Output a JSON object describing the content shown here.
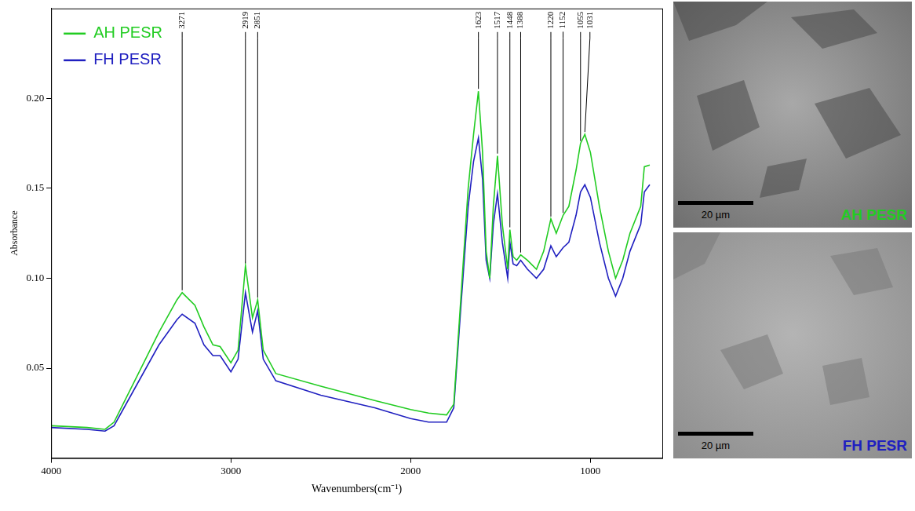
{
  "chart_data": {
    "type": "line",
    "x_label": "Wavenumbers(cm⁻¹)",
    "y_label": "Absorbance",
    "x": [
      4000,
      3800,
      3700,
      3650,
      3600,
      3500,
      3400,
      3300,
      3271,
      3200,
      3150,
      3100,
      3060,
      3000,
      2960,
      2919,
      2880,
      2851,
      2820,
      2750,
      2500,
      2200,
      2000,
      1900,
      1800,
      1760,
      1720,
      1680,
      1650,
      1623,
      1600,
      1580,
      1560,
      1540,
      1517,
      1490,
      1460,
      1448,
      1430,
      1410,
      1388,
      1350,
      1300,
      1260,
      1220,
      1190,
      1152,
      1120,
      1080,
      1055,
      1031,
      1000,
      950,
      900,
      860,
      820,
      780,
      720,
      700,
      670
    ],
    "series": [
      {
        "name": "AH PESR",
        "color": "#22cc22",
        "values": [
          0.018,
          0.017,
          0.016,
          0.02,
          0.03,
          0.05,
          0.07,
          0.088,
          0.092,
          0.085,
          0.073,
          0.063,
          0.062,
          0.053,
          0.06,
          0.107,
          0.078,
          0.088,
          0.06,
          0.047,
          0.04,
          0.032,
          0.027,
          0.025,
          0.024,
          0.03,
          0.09,
          0.15,
          0.18,
          0.204,
          0.17,
          0.115,
          0.1,
          0.14,
          0.168,
          0.13,
          0.105,
          0.127,
          0.112,
          0.11,
          0.113,
          0.11,
          0.105,
          0.115,
          0.133,
          0.125,
          0.135,
          0.14,
          0.16,
          0.175,
          0.18,
          0.17,
          0.14,
          0.115,
          0.1,
          0.11,
          0.125,
          0.14,
          0.162,
          0.163
        ]
      },
      {
        "name": "FH PESR",
        "color": "#2020c0",
        "values": [
          0.017,
          0.016,
          0.015,
          0.018,
          0.027,
          0.045,
          0.063,
          0.077,
          0.08,
          0.075,
          0.063,
          0.057,
          0.057,
          0.048,
          0.055,
          0.092,
          0.07,
          0.082,
          0.055,
          0.043,
          0.035,
          0.028,
          0.022,
          0.02,
          0.02,
          0.028,
          0.085,
          0.14,
          0.165,
          0.178,
          0.155,
          0.11,
          0.1,
          0.13,
          0.147,
          0.12,
          0.1,
          0.12,
          0.108,
          0.107,
          0.11,
          0.105,
          0.1,
          0.105,
          0.118,
          0.112,
          0.117,
          0.12,
          0.135,
          0.148,
          0.152,
          0.145,
          0.12,
          0.1,
          0.09,
          0.1,
          0.115,
          0.13,
          0.148,
          0.152
        ]
      }
    ],
    "xlim": [
      4000,
      600
    ],
    "xticks": [
      4000,
      3000,
      2000,
      1000
    ],
    "ylim": [
      0,
      0.25
    ],
    "yticks": [
      0.05,
      {
        "value": 0.1,
        "label": "0.10"
      },
      0.15,
      {
        "value": 0.2,
        "label": "0.20"
      }
    ],
    "grid": false,
    "legend": "upper left",
    "peaks": [
      3271,
      2919,
      2851,
      1623,
      1517,
      1448,
      1388,
      1220,
      1152,
      1055,
      1031
    ]
  },
  "images": [
    {
      "label": "AH PESR",
      "color": "#22cc22",
      "scale_bar": "20 µm"
    },
    {
      "label": "FH PESR",
      "color": "#2020c0",
      "scale_bar": "20 µm"
    }
  ]
}
